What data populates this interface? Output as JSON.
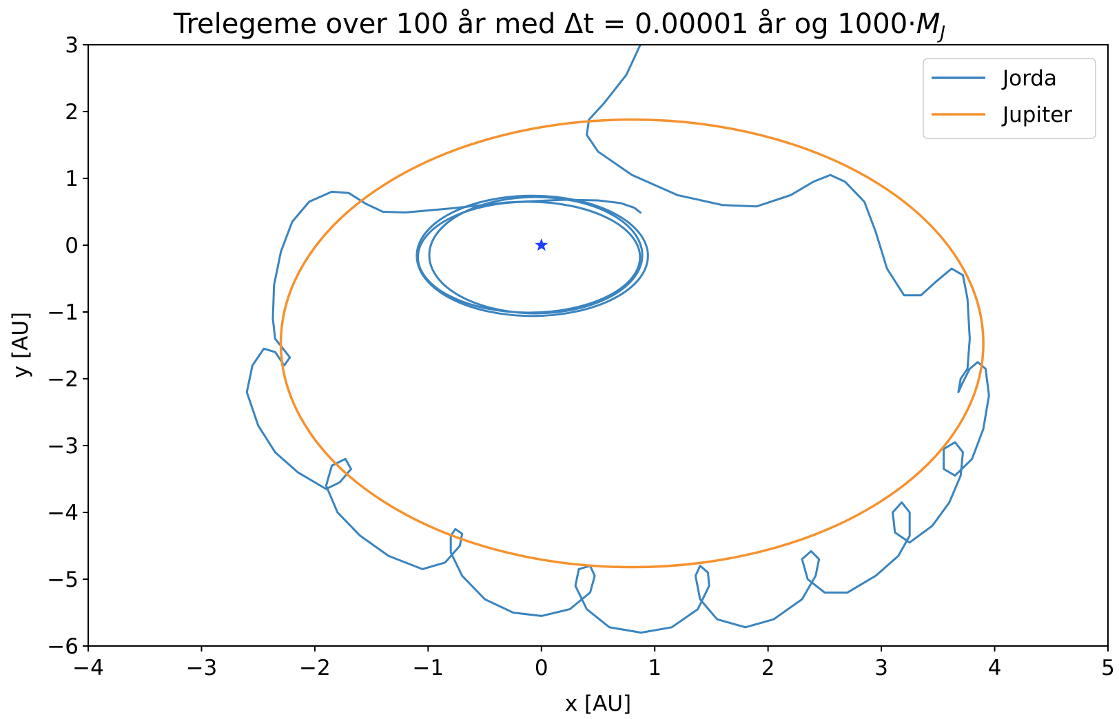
{
  "chart_data": {
    "type": "line",
    "title": "Trelegeme over 100 år med Δt = 0.00001 år og 1000·",
    "title_math": "M",
    "title_math_sub": "J",
    "xlabel": "x [AU]",
    "ylabel": "y [AU]",
    "xlim": [
      -4,
      5
    ],
    "ylim": [
      -6,
      3
    ],
    "xticks": [
      -4,
      -3,
      -2,
      -1,
      0,
      1,
      2,
      3,
      4,
      5
    ],
    "yticks": [
      -6,
      -5,
      -4,
      -3,
      -2,
      -1,
      0,
      1,
      2,
      3
    ],
    "xtick_labels": [
      "−4",
      "−3",
      "−2",
      "−1",
      "0",
      "1",
      "2",
      "3",
      "4",
      "5"
    ],
    "ytick_labels": [
      "−6",
      "−5",
      "−4",
      "−3",
      "−2",
      "−1",
      "0",
      "1",
      "2",
      "3"
    ],
    "grid": false,
    "legend_position": "top-right",
    "series": [
      {
        "name": "Jorda",
        "color": "#3a84bf",
        "points": [
          [
            0.88,
            0.48
          ],
          [
            0.82,
            0.56
          ],
          [
            0.7,
            0.63
          ],
          [
            0.5,
            0.67
          ],
          [
            0.2,
            0.68
          ],
          [
            -0.3,
            0.64
          ],
          [
            -0.8,
            0.55
          ],
          [
            -1.2,
            0.49
          ],
          [
            -1.4,
            0.5
          ],
          [
            -1.55,
            0.62
          ],
          [
            -1.7,
            0.78
          ],
          [
            -1.85,
            0.8
          ],
          [
            -2.05,
            0.65
          ],
          [
            -2.2,
            0.35
          ],
          [
            -2.3,
            -0.1
          ],
          [
            -2.36,
            -0.6
          ],
          [
            -2.37,
            -1.1
          ],
          [
            -2.35,
            -1.4
          ],
          [
            -2.28,
            -1.55
          ],
          [
            -2.22,
            -1.68
          ],
          [
            -2.27,
            -1.8
          ],
          [
            -2.35,
            -1.6
          ],
          [
            -2.45,
            -1.55
          ],
          [
            -2.55,
            -1.8
          ],
          [
            -2.6,
            -2.2
          ],
          [
            -2.5,
            -2.7
          ],
          [
            -2.35,
            -3.1
          ],
          [
            -2.15,
            -3.4
          ],
          [
            -1.9,
            -3.65
          ],
          [
            -1.78,
            -3.55
          ],
          [
            -1.68,
            -3.35
          ],
          [
            -1.73,
            -3.2
          ],
          [
            -1.85,
            -3.3
          ],
          [
            -1.9,
            -3.6
          ],
          [
            -1.8,
            -4.0
          ],
          [
            -1.6,
            -4.35
          ],
          [
            -1.35,
            -4.65
          ],
          [
            -1.05,
            -4.85
          ],
          [
            -0.85,
            -4.75
          ],
          [
            -0.72,
            -4.5
          ],
          [
            -0.7,
            -4.32
          ],
          [
            -0.76,
            -4.25
          ],
          [
            -0.8,
            -4.35
          ],
          [
            -0.8,
            -4.6
          ],
          [
            -0.7,
            -4.95
          ],
          [
            -0.5,
            -5.3
          ],
          [
            -0.25,
            -5.5
          ],
          [
            0.0,
            -5.55
          ],
          [
            0.25,
            -5.45
          ],
          [
            0.43,
            -5.2
          ],
          [
            0.47,
            -4.95
          ],
          [
            0.43,
            -4.8
          ],
          [
            0.33,
            -4.85
          ],
          [
            0.3,
            -5.1
          ],
          [
            0.4,
            -5.45
          ],
          [
            0.6,
            -5.72
          ],
          [
            0.88,
            -5.8
          ],
          [
            1.15,
            -5.72
          ],
          [
            1.38,
            -5.45
          ],
          [
            1.48,
            -5.1
          ],
          [
            1.47,
            -4.9
          ],
          [
            1.4,
            -4.8
          ],
          [
            1.36,
            -4.95
          ],
          [
            1.4,
            -5.3
          ],
          [
            1.55,
            -5.6
          ],
          [
            1.8,
            -5.72
          ],
          [
            2.05,
            -5.6
          ],
          [
            2.3,
            -5.3
          ],
          [
            2.42,
            -4.95
          ],
          [
            2.45,
            -4.7
          ],
          [
            2.38,
            -4.58
          ],
          [
            2.3,
            -4.7
          ],
          [
            2.35,
            -5.0
          ],
          [
            2.5,
            -5.2
          ],
          [
            2.7,
            -5.2
          ],
          [
            2.95,
            -4.95
          ],
          [
            3.15,
            -4.65
          ],
          [
            3.25,
            -4.35
          ],
          [
            3.25,
            -4.0
          ],
          [
            3.18,
            -3.85
          ],
          [
            3.1,
            -4.0
          ],
          [
            3.12,
            -4.3
          ],
          [
            3.25,
            -4.45
          ],
          [
            3.45,
            -4.2
          ],
          [
            3.6,
            -3.85
          ],
          [
            3.7,
            -3.45
          ],
          [
            3.72,
            -3.1
          ],
          [
            3.65,
            -2.95
          ],
          [
            3.55,
            -3.05
          ],
          [
            3.55,
            -3.35
          ],
          [
            3.65,
            -3.45
          ],
          [
            3.8,
            -3.2
          ],
          [
            3.9,
            -2.75
          ],
          [
            3.95,
            -2.25
          ],
          [
            3.92,
            -1.85
          ],
          [
            3.85,
            -1.75
          ],
          [
            3.78,
            -1.85
          ],
          [
            3.72,
            -2.05
          ],
          [
            3.68,
            -2.2
          ],
          [
            3.7,
            -2.0
          ],
          [
            3.76,
            -1.85
          ],
          [
            3.78,
            -1.4
          ],
          [
            3.76,
            -0.8
          ],
          [
            3.72,
            -0.45
          ],
          [
            3.62,
            -0.35
          ],
          [
            3.48,
            -0.55
          ],
          [
            3.35,
            -0.75
          ],
          [
            3.2,
            -0.75
          ],
          [
            3.05,
            -0.35
          ],
          [
            2.95,
            0.2
          ],
          [
            2.85,
            0.65
          ],
          [
            2.68,
            0.95
          ],
          [
            2.55,
            1.05
          ],
          [
            2.4,
            0.95
          ],
          [
            2.2,
            0.75
          ],
          [
            1.9,
            0.58
          ],
          [
            1.6,
            0.6
          ],
          [
            1.2,
            0.75
          ],
          [
            0.8,
            1.05
          ],
          [
            0.5,
            1.4
          ],
          [
            0.4,
            1.65
          ],
          [
            0.42,
            1.88
          ],
          [
            0.55,
            2.12
          ],
          [
            0.75,
            2.55
          ],
          [
            0.9,
            3.1
          ]
        ]
      },
      {
        "name": "Jupiter",
        "color": "#f5922f",
        "ellipse": {
          "cx": 0.8,
          "cy": -1.47,
          "rx": 3.1,
          "ry": 3.35
        }
      }
    ],
    "inner_orbits": [
      {
        "cx": -0.11,
        "cy": -0.18,
        "rx": 0.98,
        "ry": 0.83
      },
      {
        "cx": -0.08,
        "cy": -0.16,
        "rx": 1.02,
        "ry": 0.9
      },
      {
        "cx": -0.05,
        "cy": -0.15,
        "rx": 0.94,
        "ry": 0.87
      }
    ],
    "star": {
      "x": 0,
      "y": 0,
      "color": "#1f3fff"
    }
  }
}
